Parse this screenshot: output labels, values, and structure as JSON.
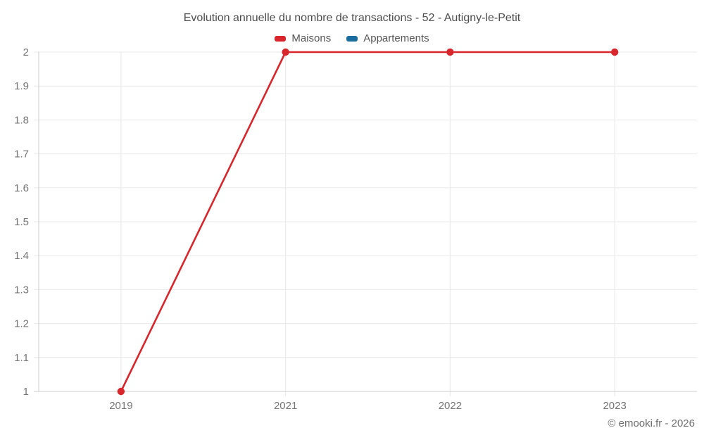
{
  "footer": "© emooki.fr - 2026",
  "chart_data": {
    "type": "line",
    "title": "Evolution annuelle du nombre de transactions - 52 - Autigny-le-Petit",
    "categories": [
      "2019",
      "2021",
      "2022",
      "2023"
    ],
    "series": [
      {
        "name": "Maisons",
        "color": "#d9262d",
        "values": [
          1,
          2,
          2,
          2
        ],
        "marker": "circle"
      },
      {
        "name": "Appartements",
        "color": "#1a6d9e",
        "values": []
      }
    ],
    "xlabel": "",
    "ylabel": "",
    "ylim": [
      1,
      2
    ],
    "ytick_step": 0.1,
    "ytick_labels": [
      "1",
      "1.1",
      "1.2",
      "1.3",
      "1.4",
      "1.5",
      "1.6",
      "1.7",
      "1.8",
      "1.9",
      "2"
    ],
    "grid": true,
    "legend_position": "top"
  },
  "colors": {
    "grid": "#e8e8e8",
    "axis": "#cccccc",
    "tick_text": "#757575",
    "title_text": "#4d4d4d",
    "legend_text": "#555555",
    "footer_text": "#6e6e6e"
  }
}
